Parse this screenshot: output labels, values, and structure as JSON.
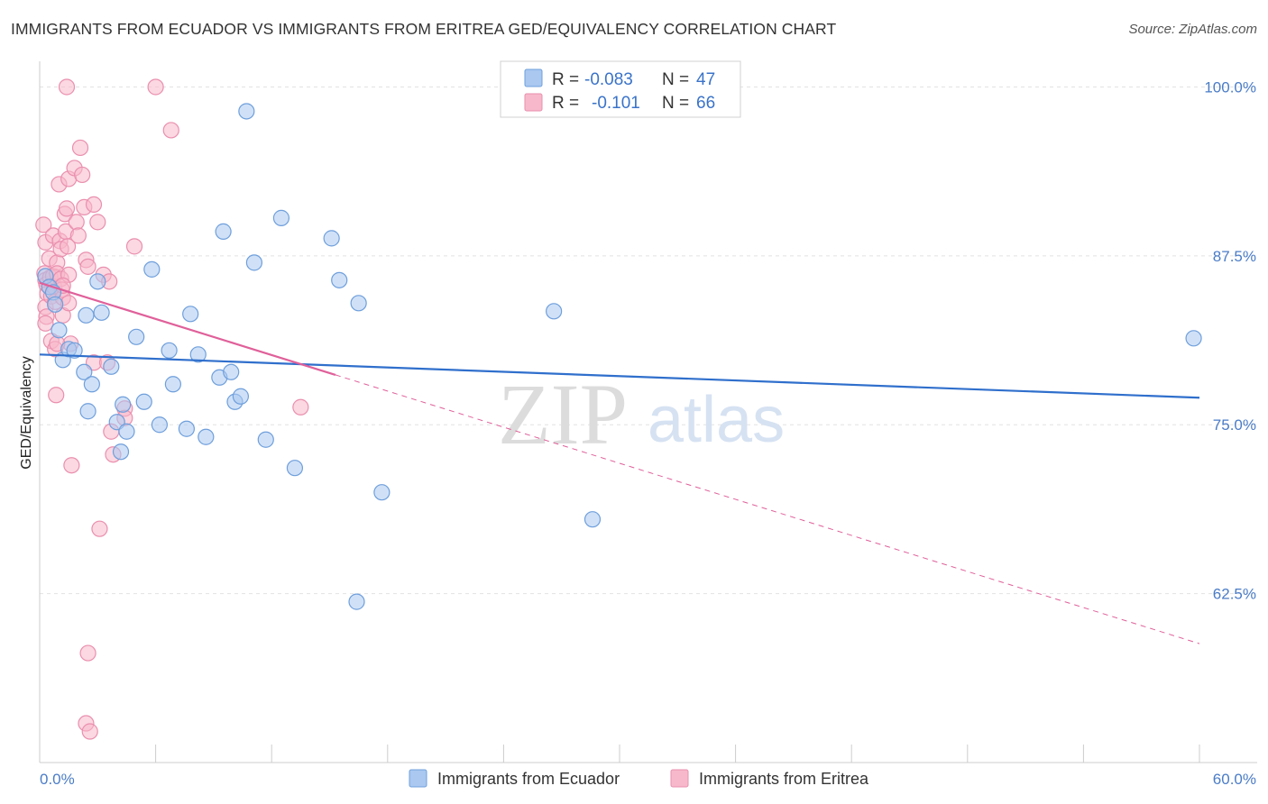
{
  "header": {
    "title": "IMMIGRANTS FROM ECUADOR VS IMMIGRANTS FROM ERITREA GED/EQUIVALENCY CORRELATION CHART",
    "source": "Source: ZipAtlas.com"
  },
  "watermark": {
    "zip": "ZIP",
    "atlas": "atlas"
  },
  "colors": {
    "ecuador_fill": "#aac8f0",
    "ecuador_stroke": "#6f9fdc",
    "ecuador_line": "#2f6fcc",
    "eritrea_fill": "#f7b8cb",
    "eritrea_stroke": "#ea8fae",
    "eritrea_line": "#e0609a",
    "axis_text": "#4a7cc7",
    "grid": "#e2e2e2"
  },
  "legend": {
    "rows": [
      {
        "r_label": "R =",
        "r_value": "-0.083",
        "n_label": "N =",
        "n_value": "47"
      },
      {
        "r_label": "R =",
        "r_value": "-0.101",
        "n_label": "N =",
        "n_value": "66"
      }
    ]
  },
  "chart_data": {
    "type": "scatter",
    "title": "IMMIGRANTS FROM ECUADOR VS IMMIGRANTS FROM ERITREA GED/EQUIVALENCY CORRELATION CHART",
    "xlabel": "",
    "ylabel": "GED/Equivalency",
    "xlim": [
      0,
      60
    ],
    "ylim": [
      50,
      101.5
    ],
    "x_tick_labels": [
      "0.0%",
      "60.0%"
    ],
    "y_ticks": [
      62.5,
      75.0,
      87.5,
      100.0
    ],
    "y_tick_labels": [
      "62.5%",
      "75.0%",
      "87.5%",
      "100.0%"
    ],
    "grid": true,
    "legend_position": "top-center",
    "series": [
      {
        "name": "Immigrants from Ecuador",
        "r": -0.083,
        "n": 47,
        "trend": {
          "x0": 0,
          "y0": 80.2,
          "x1": 60,
          "y1": 77.0,
          "dashed_from": null
        },
        "points": [
          [
            0.3,
            86.0
          ],
          [
            0.5,
            85.2
          ],
          [
            0.7,
            84.8
          ],
          [
            0.8,
            83.9
          ],
          [
            1.0,
            82.0
          ],
          [
            1.2,
            79.8
          ],
          [
            1.5,
            80.6
          ],
          [
            1.8,
            80.5
          ],
          [
            2.3,
            78.9
          ],
          [
            2.5,
            76.0
          ],
          [
            2.7,
            78.0
          ],
          [
            2.4,
            83.1
          ],
          [
            3.0,
            85.6
          ],
          [
            3.2,
            83.3
          ],
          [
            3.7,
            79.3
          ],
          [
            4.0,
            75.2
          ],
          [
            4.3,
            76.5
          ],
          [
            4.5,
            74.5
          ],
          [
            4.2,
            73.0
          ],
          [
            5.0,
            81.5
          ],
          [
            5.4,
            76.7
          ],
          [
            5.8,
            86.5
          ],
          [
            6.2,
            75.0
          ],
          [
            6.7,
            80.5
          ],
          [
            6.9,
            78.0
          ],
          [
            7.6,
            74.7
          ],
          [
            7.8,
            83.2
          ],
          [
            8.2,
            80.2
          ],
          [
            8.6,
            74.1
          ],
          [
            9.3,
            78.5
          ],
          [
            9.5,
            89.3
          ],
          [
            9.9,
            78.9
          ],
          [
            10.1,
            76.7
          ],
          [
            10.4,
            77.1
          ],
          [
            10.7,
            98.2
          ],
          [
            11.1,
            87.0
          ],
          [
            11.7,
            73.9
          ],
          [
            12.5,
            90.3
          ],
          [
            13.2,
            71.8
          ],
          [
            15.1,
            88.8
          ],
          [
            15.5,
            85.7
          ],
          [
            16.4,
            61.9
          ],
          [
            16.5,
            84.0
          ],
          [
            17.7,
            70.0
          ],
          [
            26.6,
            83.4
          ],
          [
            28.6,
            68.0
          ],
          [
            59.7,
            81.4
          ]
        ]
      },
      {
        "name": "Immigrants from Eritrea",
        "r": -0.101,
        "n": 66,
        "trend": {
          "x0": 0,
          "y0": 85.5,
          "x1": 60,
          "y1": 58.8,
          "dashed_from": 15.3
        },
        "points": [
          [
            0.2,
            89.8
          ],
          [
            0.3,
            88.5
          ],
          [
            0.25,
            86.2
          ],
          [
            0.3,
            85.7
          ],
          [
            0.35,
            85.4
          ],
          [
            0.4,
            84.7
          ],
          [
            0.3,
            83.7
          ],
          [
            0.35,
            83.0
          ],
          [
            0.3,
            82.5
          ],
          [
            0.5,
            87.3
          ],
          [
            0.55,
            85.9
          ],
          [
            0.6,
            84.5
          ],
          [
            0.6,
            81.2
          ],
          [
            0.7,
            89.0
          ],
          [
            0.7,
            86.0
          ],
          [
            0.75,
            85.2
          ],
          [
            0.8,
            84.1
          ],
          [
            0.8,
            80.6
          ],
          [
            0.85,
            77.2
          ],
          [
            0.9,
            87.0
          ],
          [
            0.9,
            86.2
          ],
          [
            1.0,
            92.8
          ],
          [
            1.05,
            88.6
          ],
          [
            1.1,
            88.0
          ],
          [
            1.1,
            85.8
          ],
          [
            1.15,
            85.0
          ],
          [
            1.2,
            84.4
          ],
          [
            1.2,
            83.1
          ],
          [
            1.3,
            90.6
          ],
          [
            1.35,
            89.3
          ],
          [
            1.4,
            91.0
          ],
          [
            1.45,
            88.2
          ],
          [
            1.5,
            86.1
          ],
          [
            1.5,
            84.0
          ],
          [
            1.6,
            81.0
          ],
          [
            1.65,
            72.0
          ],
          [
            1.4,
            100.0
          ],
          [
            1.5,
            93.2
          ],
          [
            1.8,
            94.0
          ],
          [
            1.9,
            90.0
          ],
          [
            2.0,
            89.0
          ],
          [
            2.1,
            95.5
          ],
          [
            2.2,
            93.5
          ],
          [
            2.3,
            91.1
          ],
          [
            2.4,
            87.2
          ],
          [
            2.5,
            86.7
          ],
          [
            2.4,
            52.9
          ],
          [
            2.6,
            52.3
          ],
          [
            2.5,
            58.1
          ],
          [
            2.8,
            91.3
          ],
          [
            2.8,
            79.6
          ],
          [
            3.0,
            90.0
          ],
          [
            3.1,
            67.3
          ],
          [
            3.3,
            86.1
          ],
          [
            3.5,
            79.6
          ],
          [
            3.6,
            85.6
          ],
          [
            3.7,
            74.5
          ],
          [
            3.8,
            72.8
          ],
          [
            4.4,
            76.2
          ],
          [
            4.9,
            88.2
          ],
          [
            6.0,
            100.0
          ],
          [
            6.8,
            96.8
          ],
          [
            13.5,
            76.3
          ],
          [
            4.4,
            75.5
          ],
          [
            0.9,
            81.0
          ],
          [
            1.2,
            85.3
          ]
        ]
      }
    ]
  }
}
